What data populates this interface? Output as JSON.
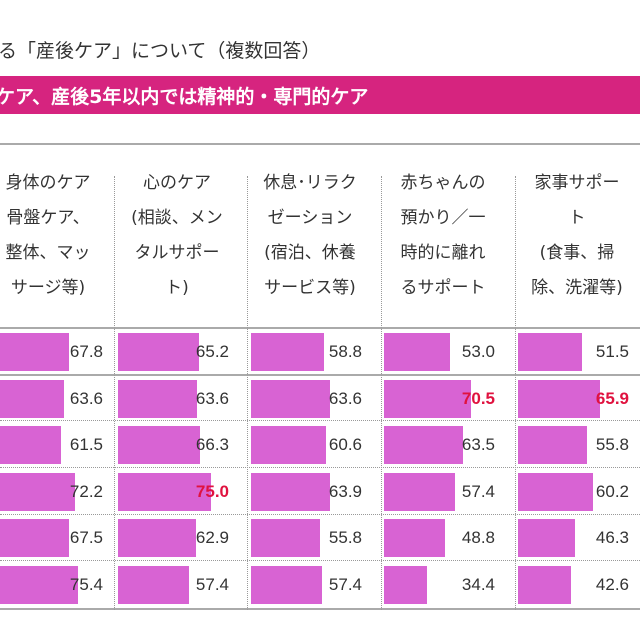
{
  "title": "る「産後ケア」について（複数回答）",
  "banner": "ケア、産後5年以内では精神的・専門的ケア",
  "colors": {
    "banner": "#d6247f",
    "bar": "#d863d3",
    "highlight": "#e0123f"
  },
  "chart_data": {
    "type": "table",
    "columns": [
      "身体のケア\n骨盤ケア、\n整体、マッ\nサージ等)",
      "心のケア\n(相談、メン\nタルサポー\nト)",
      "休息･リラク\nゼーション\n(宿泊、休養\nサービス等)",
      "赤ちゃんの\n預かり／一\n時的に離れ\nるサポート",
      "家事サポー\nト\n(食事、掃\n除、洗濯等)"
    ],
    "rows": [
      [
        67.8,
        65.2,
        58.8,
        53.0,
        51.5
      ],
      [
        63.6,
        63.6,
        63.6,
        70.5,
        65.9
      ],
      [
        61.5,
        66.3,
        60.6,
        63.5,
        55.8
      ],
      [
        72.2,
        75.0,
        63.9,
        57.4,
        60.2
      ],
      [
        67.5,
        62.9,
        55.8,
        48.8,
        46.3
      ],
      [
        75.4,
        57.4,
        57.4,
        34.4,
        42.6
      ]
    ],
    "highlighted": [
      [
        1,
        3
      ],
      [
        1,
        4
      ],
      [
        3,
        1
      ]
    ]
  }
}
